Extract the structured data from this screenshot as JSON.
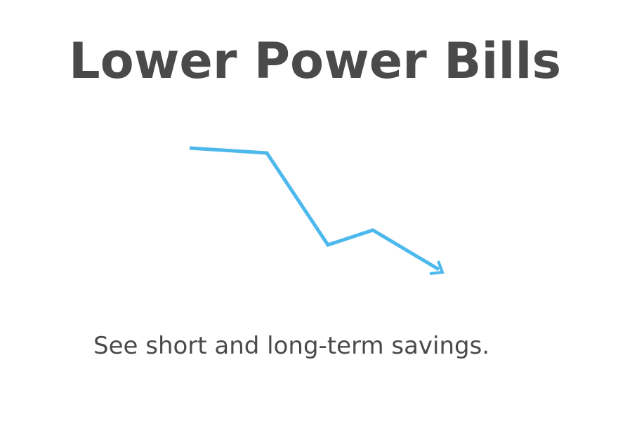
{
  "headline": {
    "text": "Lower Power Bills"
  },
  "graphic": {
    "icon": "trending-down-arrow-icon"
  },
  "tagline": {
    "text": "See short and long-term savings."
  },
  "colors": {
    "text": "#4a4a4a",
    "arrow_fill": "#4cb8ec",
    "arrow_outline": "#2f9fda",
    "background": "#ffffff"
  }
}
